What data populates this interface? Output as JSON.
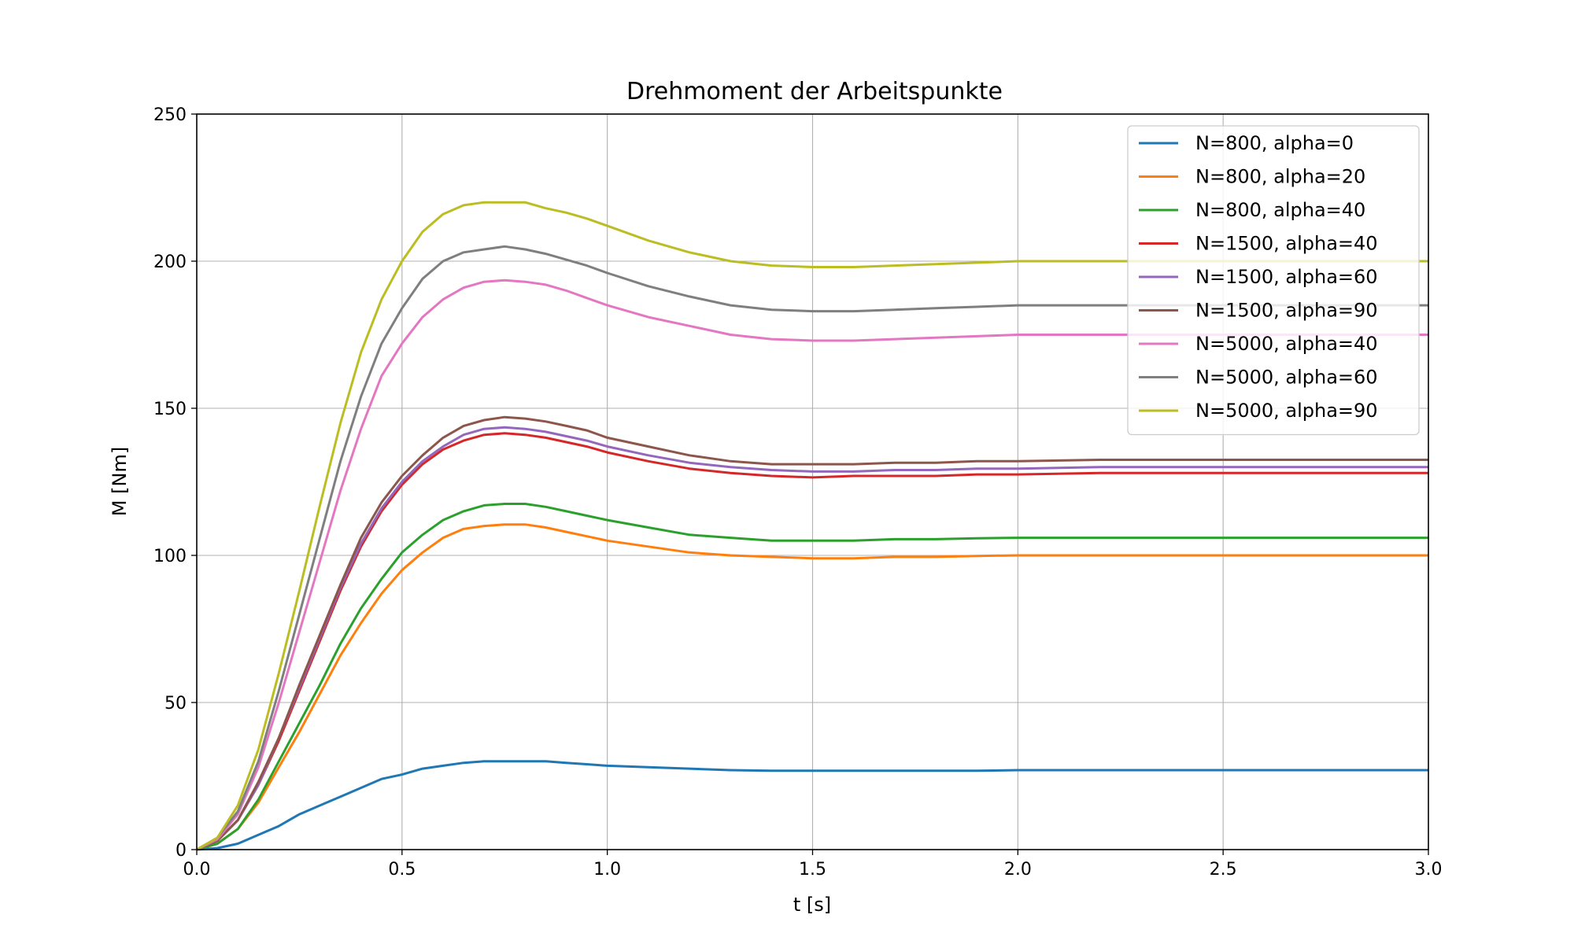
{
  "chart_data": {
    "type": "line",
    "title": "Drehmoment der Arbeitspunkte",
    "xlabel": "t [s]",
    "ylabel": "M [Nm]",
    "xlim": [
      0,
      3.0
    ],
    "ylim": [
      0,
      250
    ],
    "x_ticks": [
      "0.0",
      "0.5",
      "1.0",
      "1.5",
      "2.0",
      "2.5",
      "3.0"
    ],
    "x_tick_values": [
      0,
      0.5,
      1.0,
      1.5,
      2.0,
      2.5,
      3.0
    ],
    "y_ticks": [
      "0",
      "50",
      "100",
      "150",
      "200",
      "250"
    ],
    "y_tick_values": [
      0,
      50,
      100,
      150,
      200,
      250
    ],
    "grid": true,
    "legend_position": "top-right",
    "x": [
      0,
      0.05,
      0.1,
      0.15,
      0.2,
      0.25,
      0.3,
      0.35,
      0.4,
      0.45,
      0.5,
      0.55,
      0.6,
      0.65,
      0.7,
      0.75,
      0.8,
      0.85,
      0.9,
      0.95,
      1.0,
      1.1,
      1.2,
      1.3,
      1.4,
      1.5,
      1.6,
      1.7,
      1.8,
      1.9,
      2.0,
      2.2,
      2.4,
      2.6,
      2.8,
      3.0
    ],
    "series": [
      {
        "name": "N=800, alpha=0",
        "color": "#1f77b4",
        "values": [
          0,
          0.5,
          2,
          5,
          8,
          12,
          15,
          18,
          21,
          24,
          25.5,
          27.5,
          28.5,
          29.5,
          30,
          30,
          30,
          30,
          29.5,
          29,
          28.5,
          28,
          27.5,
          27,
          26.8,
          26.8,
          26.8,
          26.8,
          26.8,
          26.8,
          27,
          27,
          27,
          27,
          27,
          27
        ]
      },
      {
        "name": "N=800, alpha=20",
        "color": "#ff7f0e",
        "values": [
          0,
          2,
          7,
          16,
          28,
          40,
          53,
          66,
          77,
          87,
          95,
          101,
          106,
          109,
          110,
          110.5,
          110.5,
          109.5,
          108,
          106.5,
          105,
          103,
          101,
          100,
          99.5,
          99,
          99,
          99.5,
          99.5,
          99.8,
          100,
          100,
          100,
          100,
          100,
          100
        ]
      },
      {
        "name": "N=800, alpha=40",
        "color": "#2ca02c",
        "values": [
          0,
          2,
          7,
          17,
          30,
          43,
          56,
          70,
          82,
          92,
          101,
          107,
          112,
          115,
          117,
          117.5,
          117.5,
          116.5,
          115,
          113.5,
          112,
          109.5,
          107,
          106,
          105,
          105,
          105,
          105.5,
          105.5,
          105.8,
          106,
          106,
          106,
          106,
          106,
          106
        ]
      },
      {
        "name": "N=1500, alpha=40",
        "color": "#d62728",
        "values": [
          0,
          3,
          10,
          22,
          37,
          54,
          71,
          88,
          103,
          115,
          124,
          131,
          136,
          139,
          141,
          141.5,
          141,
          140,
          138.5,
          137,
          135,
          132,
          129.5,
          128,
          127,
          126.5,
          127,
          127,
          127,
          127.5,
          127.5,
          128,
          128,
          128,
          128,
          128
        ]
      },
      {
        "name": "N=1500, alpha=60",
        "color": "#9467bd",
        "values": [
          0,
          3,
          10,
          22,
          38,
          55,
          72,
          89,
          104,
          116,
          125,
          132,
          137,
          141,
          143,
          143.5,
          143,
          142,
          140.5,
          139,
          137,
          134,
          131.5,
          130,
          129,
          128.5,
          128.5,
          129,
          129,
          129.5,
          129.5,
          130,
          130,
          130,
          130,
          130
        ]
      },
      {
        "name": "N=1500, alpha=90",
        "color": "#8c564b",
        "values": [
          0,
          3,
          10,
          23,
          38,
          56,
          73,
          90,
          106,
          118,
          127,
          134,
          140,
          144,
          146,
          147,
          146.5,
          145.5,
          144,
          142.5,
          140,
          137,
          134,
          132,
          131,
          131,
          131,
          131.5,
          131.5,
          132,
          132,
          132.5,
          132.5,
          132.5,
          132.5,
          132.5
        ]
      },
      {
        "name": "N=5000, alpha=40",
        "color": "#e377c2",
        "values": [
          0,
          3.5,
          12,
          28,
          50,
          74,
          98,
          122,
          143,
          161,
          172,
          181,
          187,
          191,
          193,
          193.5,
          193,
          192,
          190,
          187.5,
          185,
          181,
          178,
          175,
          173.5,
          173,
          173,
          173.5,
          174,
          174.5,
          175,
          175,
          175,
          175,
          175,
          175
        ]
      },
      {
        "name": "N=5000, alpha=60",
        "color": "#7f7f7f",
        "values": [
          0,
          4,
          13,
          30,
          54,
          80,
          106,
          132,
          154,
          172,
          184,
          194,
          200,
          203,
          204,
          205,
          204,
          202.5,
          200.5,
          198.5,
          196,
          191.5,
          188,
          185,
          183.5,
          183,
          183,
          183.5,
          184,
          184.5,
          185,
          185,
          185,
          185,
          185,
          185
        ]
      },
      {
        "name": "N=5000, alpha=90",
        "color": "#bcbd22",
        "values": [
          0,
          4,
          15,
          34,
          60,
          88,
          117,
          145,
          169,
          187,
          200,
          210,
          216,
          219,
          220,
          220,
          220,
          218,
          216.5,
          214.5,
          212,
          207,
          203,
          200,
          198.5,
          198,
          198,
          198.5,
          199,
          199.5,
          200,
          200,
          200,
          200,
          200,
          200
        ]
      }
    ]
  }
}
